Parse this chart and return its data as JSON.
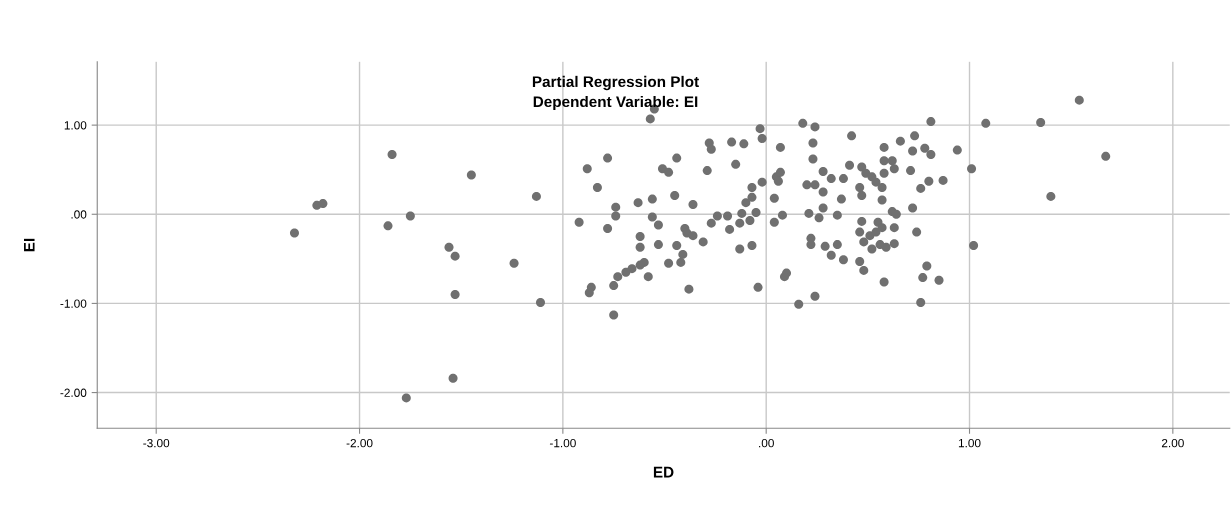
{
  "chart_data": {
    "type": "scatter",
    "title": "Partial Regression Plot",
    "subtitle": "Dependent Variable: EI",
    "xlabel": "ED",
    "ylabel": "EI",
    "xlim": [
      -3.29,
      2.28
    ],
    "ylim": [
      -2.4,
      1.71
    ],
    "xticks": [
      {
        "value": -3,
        "label": "-3.00"
      },
      {
        "value": -2,
        "label": "-2.00"
      },
      {
        "value": -1,
        "label": "-1.00"
      },
      {
        "value": 0,
        "label": ".00"
      },
      {
        "value": 1,
        "label": "1.00"
      },
      {
        "value": 2,
        "label": "2.00"
      }
    ],
    "yticks": [
      {
        "value": -2,
        "label": "-2.00"
      },
      {
        "value": -1,
        "label": "-1.00"
      },
      {
        "value": 0,
        "label": ".00"
      },
      {
        "value": 1,
        "label": "1.00"
      }
    ],
    "grid": true,
    "marker": "circle",
    "series": [
      {
        "color": "#707070",
        "x": [
          -2.32,
          -2.21,
          -2.18,
          -1.86,
          -1.75,
          -1.84,
          -1.56,
          -1.53,
          -1.53,
          -1.54,
          -1.77,
          -1.45,
          -1.24,
          -1.13,
          -1.11,
          -0.92,
          -0.55,
          -0.57,
          -0.03,
          -0.02,
          -0.28,
          -0.27,
          -0.17,
          -0.11,
          -0.78,
          -0.44,
          -0.88,
          -0.51,
          -0.48,
          -0.29,
          -0.15,
          -0.83,
          -0.63,
          -0.56,
          -0.45,
          -0.36,
          -0.74,
          -0.74,
          -0.78,
          -0.56,
          -0.53,
          -0.62,
          -0.4,
          -0.39,
          -0.36,
          -0.62,
          -0.53,
          -0.44,
          -0.31,
          -0.41,
          -0.6,
          -0.62,
          -0.66,
          -0.69,
          -0.73,
          -0.58,
          -0.48,
          -0.42,
          -0.75,
          -0.86,
          -0.87,
          -0.38,
          -0.75,
          -0.27,
          -0.24,
          -0.18,
          -0.19,
          -0.13,
          -0.12,
          -0.08,
          -0.05,
          -0.1,
          -0.07,
          -0.07,
          -0.02,
          -0.13,
          -0.07,
          -0.04,
          0.04,
          0.04,
          0.07,
          0.05,
          0.18,
          0.24,
          0.42,
          0.81,
          0.23,
          0.23,
          0.58,
          0.66,
          0.73,
          0.72,
          0.78,
          0.81,
          0.94,
          1.01,
          0.07,
          0.06,
          0.28,
          0.41,
          0.47,
          0.32,
          0.38,
          0.2,
          0.24,
          0.28,
          0.46,
          0.47,
          0.49,
          0.52,
          0.54,
          0.57,
          0.58,
          0.62,
          0.58,
          0.63,
          0.71,
          0.76,
          0.8,
          0.87,
          0.37,
          0.57,
          0.28,
          0.21,
          0.26,
          0.35,
          0.08,
          0.62,
          0.64,
          0.72,
          0.47,
          0.55,
          0.57,
          0.63,
          0.46,
          0.51,
          0.54,
          0.74,
          0.22,
          0.22,
          0.29,
          0.35,
          0.48,
          0.52,
          0.56,
          0.59,
          0.63,
          1.02,
          0.32,
          0.38,
          0.46,
          0.48,
          0.79,
          0.1,
          0.09,
          0.77,
          0.85,
          0.58,
          0.24,
          0.16,
          0.76,
          1.08,
          1.35,
          1.54,
          1.67,
          1.4
        ],
        "values": [
          -0.21,
          0.1,
          0.12,
          -0.13,
          -0.02,
          0.67,
          -0.37,
          -0.47,
          -0.9,
          -1.84,
          -2.06,
          0.44,
          -0.55,
          0.2,
          -0.99,
          -0.09,
          1.18,
          1.07,
          0.96,
          0.85,
          0.8,
          0.73,
          0.81,
          0.79,
          0.63,
          0.63,
          0.51,
          0.51,
          0.47,
          0.49,
          0.56,
          0.3,
          0.13,
          0.17,
          0.21,
          0.11,
          0.08,
          -0.02,
          -0.16,
          -0.03,
          -0.12,
          -0.25,
          -0.16,
          -0.21,
          -0.24,
          -0.37,
          -0.34,
          -0.35,
          -0.31,
          -0.45,
          -0.54,
          -0.57,
          -0.61,
          -0.65,
          -0.7,
          -0.7,
          -0.55,
          -0.54,
          -0.8,
          -0.82,
          -0.88,
          -0.84,
          -1.13,
          -0.1,
          -0.02,
          -0.17,
          -0.02,
          -0.1,
          0.01,
          -0.07,
          0.02,
          0.13,
          0.19,
          0.3,
          0.36,
          -0.39,
          -0.35,
          -0.82,
          0.18,
          -0.09,
          0.75,
          0.42,
          1.02,
          0.98,
          0.88,
          1.04,
          0.8,
          0.62,
          0.75,
          0.82,
          0.88,
          0.71,
          0.74,
          0.67,
          0.72,
          0.51,
          0.47,
          0.37,
          0.48,
          0.55,
          0.53,
          0.4,
          0.4,
          0.33,
          0.33,
          0.25,
          0.3,
          0.21,
          0.46,
          0.42,
          0.36,
          0.3,
          0.6,
          0.6,
          0.46,
          0.51,
          0.49,
          0.29,
          0.37,
          0.38,
          0.17,
          0.16,
          0.07,
          0.01,
          -0.04,
          -0.01,
          -0.01,
          0.03,
          0.0,
          0.07,
          -0.08,
          -0.09,
          -0.15,
          -0.15,
          -0.2,
          -0.24,
          -0.2,
          -0.2,
          -0.27,
          -0.34,
          -0.36,
          -0.34,
          -0.31,
          -0.39,
          -0.34,
          -0.37,
          -0.33,
          -0.35,
          -0.46,
          -0.51,
          -0.53,
          -0.63,
          -0.58,
          -0.66,
          -0.7,
          -0.71,
          -0.74,
          -0.76,
          -0.92,
          -1.01,
          -0.99,
          1.02,
          1.03,
          1.28,
          0.65,
          0.2
        ]
      }
    ]
  }
}
